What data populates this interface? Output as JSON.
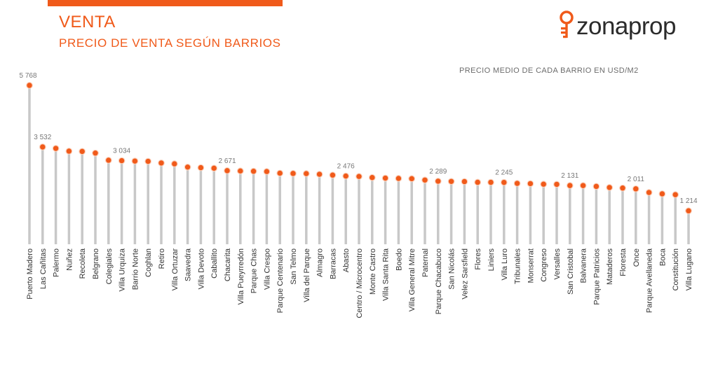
{
  "header": {
    "title": "VENTA",
    "subtitle": "PRECIO DE VENTA SEGÚN BARRIOS"
  },
  "logo": {
    "text": "zonaprop"
  },
  "colors": {
    "accent": "#f05a1a",
    "stem": "#c8c8c8",
    "text": "#333333",
    "muted": "#777777"
  },
  "chart_data": {
    "type": "lollipop",
    "title": "PRECIO MEDIO DE CADA BARRIO EN USD/M2",
    "xlabel": "",
    "ylabel": "",
    "ylim": [
      0,
      6000
    ],
    "grid": false,
    "categories": [
      "Puerto Madero",
      "Las Cañitas",
      "Palermo",
      "Nuñez",
      "Recoleta",
      "Belgrano",
      "Colegiales",
      "Villa Urquiza",
      "Barrio Norte",
      "Coghlan",
      "Retiro",
      "Villa Ortuzar",
      "Saavedra",
      "Villa Devoto",
      "Caballito",
      "Chacarita",
      "Villa Pueyrredón",
      "Parque Chas",
      "Villa Crespo",
      "Parque Centenario",
      "San Telmo",
      "Villa del Parque",
      "Almagro",
      "Barracas",
      "Abasto",
      "Centro / Microcentro",
      "Monte Castro",
      "Villa Santa Rita",
      "Boedo",
      "Villa General Mitre",
      "Paternal",
      "Parque Chacabuco",
      "San Nicolás",
      "Velez Sarsfield",
      "Flores",
      "Liniers",
      "Villa Luro",
      "Tribunales",
      "Monserrat",
      "Congreso",
      "Versalles",
      "San Cristobal",
      "Balvanera",
      "Parque Patricios",
      "Mataderos",
      "Floresta",
      "Once",
      "Parque Avellaneda",
      "Boca",
      "Constitución",
      "Villa Lugano"
    ],
    "values": [
      5768,
      3532,
      3480,
      3380,
      3370,
      3310,
      3050,
      3034,
      3020,
      3010,
      2950,
      2920,
      2800,
      2780,
      2760,
      2671,
      2660,
      2650,
      2640,
      2580,
      2570,
      2565,
      2540,
      2510,
      2476,
      2460,
      2420,
      2400,
      2390,
      2380,
      2330,
      2289,
      2280,
      2275,
      2250,
      2248,
      2245,
      2210,
      2200,
      2180,
      2175,
      2131,
      2130,
      2100,
      2060,
      2040,
      2011,
      1880,
      1830,
      1800,
      1214
    ],
    "data_labels": [
      {
        "index": 0,
        "text": "5 768"
      },
      {
        "index": 1,
        "text": "3 532"
      },
      {
        "index": 7,
        "text": "3 034"
      },
      {
        "index": 15,
        "text": "2 671"
      },
      {
        "index": 24,
        "text": "2 476"
      },
      {
        "index": 31,
        "text": "2 289"
      },
      {
        "index": 36,
        "text": "2 245"
      },
      {
        "index": 41,
        "text": "2 131"
      },
      {
        "index": 46,
        "text": "2 011"
      },
      {
        "index": 50,
        "text": "1 214"
      }
    ]
  }
}
